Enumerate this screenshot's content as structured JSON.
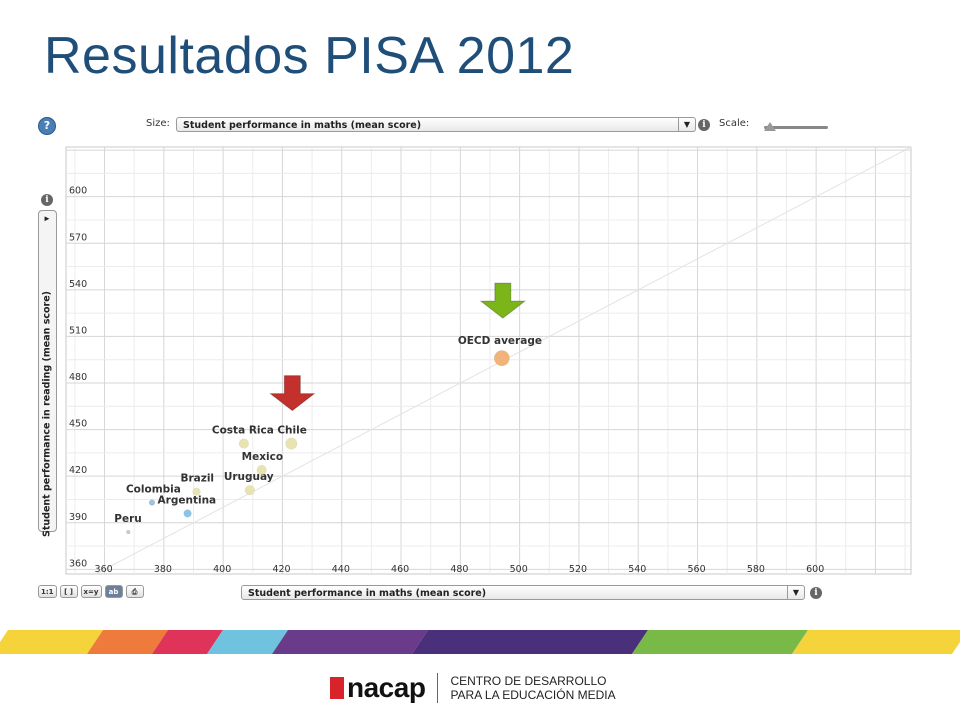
{
  "slide": {
    "title": "Resultados PISA 2012"
  },
  "toolbar": {
    "help_label": "?",
    "size_label": "Size:",
    "size_value": "Student performance in maths (mean score)",
    "scale_label": "Scale:",
    "info_glyph": "i",
    "dropdown_glyph": "▼"
  },
  "y_selector": {
    "value": "Student performance in reading (mean score)",
    "arrow_glyph": "►"
  },
  "x_selector": {
    "value": "Student performance in maths (mean score)"
  },
  "view_buttons": [
    "1:1",
    "[ ]",
    "x=y",
    "ab"
  ],
  "chart_data": {
    "type": "scatter",
    "title": "",
    "xlabel": "Student performance in maths (mean score)",
    "ylabel": "Student performance in reading (mean score)",
    "xlim": [
      347,
      632
    ],
    "ylim": [
      357,
      632
    ],
    "x_ticks": [
      360,
      380,
      400,
      420,
      440,
      460,
      480,
      500,
      520,
      540,
      560,
      580,
      600
    ],
    "y_ticks": [
      360,
      390,
      420,
      450,
      480,
      510,
      540,
      570,
      600
    ],
    "grid": true,
    "diagonal_reference": "x=y",
    "points": [
      {
        "label": "Peru",
        "x": 368,
        "y": 384,
        "size": 1,
        "color": "#cccccc"
      },
      {
        "label": "Colombia",
        "x": 376,
        "y": 403,
        "size": 2,
        "color": "#9fc3d9"
      },
      {
        "label": "Argentina",
        "x": 388,
        "y": 396,
        "size": 3,
        "color": "#8cc4e6"
      },
      {
        "label": "Brazil",
        "x": 391,
        "y": 410,
        "size": 3,
        "color": "#e9e3b2"
      },
      {
        "label": "Uruguay",
        "x": 409,
        "y": 411,
        "size": 4,
        "color": "#e9e3b2"
      },
      {
        "label": "Mexico",
        "x": 413,
        "y": 424,
        "size": 4,
        "color": "#e9e3b2"
      },
      {
        "label": "Costa Rica",
        "x": 407,
        "y": 441,
        "size": 4,
        "color": "#e9e3b2"
      },
      {
        "label": "Chile",
        "x": 423,
        "y": 441,
        "size": 5,
        "color": "#e9e3b2"
      },
      {
        "label": "OECD average",
        "x": 494,
        "y": 496,
        "size": 7,
        "color": "#f0b37a"
      }
    ],
    "annotations": [
      {
        "type": "arrow",
        "color": "#c4302b",
        "target": "Chile"
      },
      {
        "type": "arrow",
        "color": "#7cb518",
        "target": "OECD average"
      }
    ]
  },
  "stripe_colors": [
    "#f5d33b",
    "#ee7b3b",
    "#e0335a",
    "#6fc3df",
    "#6a3b8a",
    "#4a2f7a",
    "#78b948",
    "#f5d33b"
  ],
  "footer": {
    "brand": "nacap",
    "line1": "CENTRO DE DESARROLLO",
    "line2": "PARA LA EDUCACIÓN MEDIA"
  }
}
